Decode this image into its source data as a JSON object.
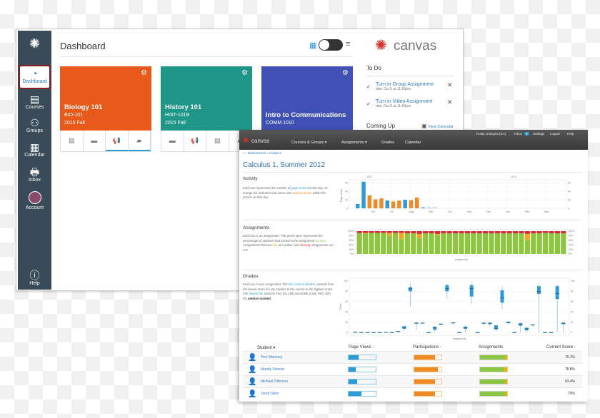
{
  "dashboard": {
    "title": "Dashboard",
    "nav": [
      {
        "label": "Dashboard",
        "icon": "dashboard-gauge-icon"
      },
      {
        "label": "Courses",
        "icon": "courses-book-icon"
      },
      {
        "label": "Groups",
        "icon": "groups-icon"
      },
      {
        "label": "Calendar",
        "icon": "calendar-icon"
      },
      {
        "label": "Inbox",
        "icon": "inbox-icon"
      },
      {
        "label": "Account",
        "icon": "avatar"
      },
      {
        "label": "Help",
        "icon": "help-icon"
      }
    ],
    "cards": [
      {
        "title": "Biology 101",
        "code": "BIO-101",
        "term": "2015 Fall",
        "color": "#E8591A"
      },
      {
        "title": "History 101",
        "code": "HIST-101B",
        "term": "2015 Fall",
        "color": "#1E9688"
      },
      {
        "title": "Intro to Communications",
        "code": "COMM 1010",
        "term": "",
        "color": "#3F51B5"
      }
    ],
    "brand": "canvas",
    "todo": {
      "title": "To Do",
      "items": [
        {
          "label": "Turn in Group Assignment",
          "due": "due: Oct 5 at 11:59pm"
        },
        {
          "label": "Turn in Video Assignment",
          "due": "due: Oct 8 at 11:59pm"
        }
      ]
    },
    "coming_up": "Coming Up",
    "view_calendar": "View Calendar"
  },
  "analytics": {
    "brand": "canvas",
    "user_links": {
      "user": "Rusty Lindquist (SA)",
      "inbox": "Inbox",
      "inbox_count": "3",
      "settings": "Settings",
      "logout": "Logout",
      "help": "Help"
    },
    "nav": [
      "Courses & Groups ▾",
      "Assignments ▾",
      "Grades",
      "Calendar"
    ],
    "breadcrumb": [
      "Math161S12",
      "Analytics"
    ],
    "title": "Calculus 1, Summer 2012",
    "activity": {
      "heading": "Activity",
      "desc": [
        "Each bar represents the number of ",
        "page views",
        " on that day. An orange bar indicates that some user ",
        "took an action",
        " within the course on that day."
      ]
    },
    "assignments": {
      "heading": "Assignments",
      "desc": [
        "Each bar is an assignment. The green layer represents the percentage of students that turned in the assignment ",
        "on time",
        ". Assignments that are ",
        "late",
        " are yellow, and ",
        "missing",
        " assignments are red."
      ]
    },
    "grades": {
      "heading": "Grades",
      "desc": [
        "Each bar is one assignment. The ",
        "thin vertical whisker",
        " extends from the lowest score for any student in the course to the highest score. The ",
        "thicker bar",
        " extends from the 25th percentile to the 75th, with the ",
        "median marked",
        "."
      ]
    },
    "table": {
      "headers": [
        "Student ▾",
        "Page Views ◦",
        "Participations ◦",
        "Assignments",
        "Current Score ◦"
      ],
      "rows": [
        {
          "name": "Tom Maroney",
          "page_views": 0.38,
          "participations": 0.75,
          "assignments": [
            0.92,
            0.08
          ],
          "score": "76.1%"
        },
        {
          "name": "Mandy Simson",
          "page_views": 0.25,
          "participations": 0.88,
          "assignments": [
            0.88,
            0.12
          ],
          "score": "78.8%"
        },
        {
          "name": "Michael Otterson",
          "page_views": 0.32,
          "participations": 0.75,
          "assignments": [
            0.92,
            0.08
          ],
          "score": "93.4%"
        },
        {
          "name": "Jared Stein",
          "page_views": 0.47,
          "participations": 0.75,
          "assignments": [
            0.93,
            0.07
          ],
          "score": "79%"
        }
      ]
    }
  },
  "chart_data": [
    {
      "type": "bar",
      "name": "activity",
      "ylabel": "Page Views",
      "yticks": [
        "0",
        "2k",
        "4k",
        "6k"
      ],
      "ylim": [
        0,
        6500
      ],
      "years": [
        "2012",
        "2013"
      ],
      "months": [
        "Jun",
        "Jul",
        "Aug",
        "Sep",
        "Oct",
        "Nov",
        "Dec",
        "Jan",
        "Feb",
        "Mar"
      ],
      "colors": {
        "views": "#2D9BD8",
        "action": "#F08A24"
      },
      "values": [
        {
          "v": 1000,
          "t": "views"
        },
        {
          "v": 6200,
          "t": "views"
        },
        {
          "v": 3000,
          "t": "action"
        },
        {
          "v": 2100,
          "t": "action"
        },
        {
          "v": 2300,
          "t": "action"
        },
        {
          "v": 1800,
          "t": "views"
        },
        {
          "v": 1600,
          "t": "action"
        },
        {
          "v": 1800,
          "t": "action"
        },
        {
          "v": 2000,
          "t": "views"
        },
        {
          "v": 1900,
          "t": "action"
        },
        {
          "v": 2500,
          "t": "action"
        },
        {
          "v": 200,
          "t": "views"
        },
        {
          "v": 100,
          "t": "views"
        },
        {
          "v": 100,
          "t": "views"
        }
      ]
    },
    {
      "type": "stacked-bar",
      "name": "assignments",
      "xlabel": "Assignments",
      "yticks": [
        "0%",
        "20%",
        "40%",
        "60%",
        "80%",
        "100%"
      ],
      "colors": {
        "on_time": "#8CC63F",
        "late": "#F5A623",
        "missing": "#D42E2E"
      },
      "series_keys": [
        "on_time",
        "late",
        "missing"
      ],
      "values": [
        [
          92,
          0,
          8
        ],
        [
          88,
          4,
          8
        ],
        [
          92,
          0,
          8
        ],
        [
          92,
          0,
          8
        ],
        [
          92,
          0,
          8
        ],
        [
          80,
          12,
          8
        ],
        [
          92,
          0,
          8
        ],
        [
          65,
          27,
          8
        ],
        [
          90,
          0,
          10
        ],
        [
          90,
          0,
          10
        ],
        [
          70,
          18,
          12
        ],
        [
          90,
          0,
          10
        ],
        [
          90,
          0,
          10
        ],
        [
          82,
          6,
          12
        ],
        [
          90,
          0,
          10
        ],
        [
          90,
          0,
          10
        ],
        [
          90,
          0,
          10
        ],
        [
          90,
          0,
          10
        ],
        [
          90,
          0,
          10
        ],
        [
          90,
          0,
          10
        ],
        [
          90,
          0,
          10
        ],
        [
          90,
          0,
          10
        ],
        [
          90,
          0,
          10
        ],
        [
          90,
          0,
          10
        ],
        [
          90,
          0,
          10
        ],
        [
          90,
          0,
          10
        ],
        [
          90,
          0,
          10
        ],
        [
          90,
          0,
          10
        ],
        [
          60,
          28,
          12
        ],
        [
          90,
          0,
          10
        ],
        [
          90,
          0,
          10
        ],
        [
          92,
          0,
          8
        ],
        [
          90,
          0,
          10
        ],
        [
          90,
          0,
          10
        ],
        [
          90,
          0,
          10
        ]
      ]
    },
    {
      "type": "boxplot",
      "name": "grades",
      "xlabel": "Assignments",
      "ylabel": "Points",
      "yticks": [
        0,
        20,
        40,
        60,
        80,
        100
      ],
      "color": "#2D9BD8",
      "values": [
        [
          0,
          0,
          1,
          1,
          1
        ],
        [
          0,
          0,
          0,
          0,
          0
        ],
        [
          0,
          0,
          0,
          0,
          0
        ],
        [
          0,
          0,
          0,
          0,
          0
        ],
        [
          0,
          0,
          0,
          0,
          0
        ],
        [
          0,
          0,
          0,
          1,
          1
        ],
        [
          0,
          0,
          0,
          0,
          0
        ],
        [
          2,
          2,
          2,
          2,
          3
        ],
        [
          3,
          7,
          10,
          12,
          14
        ],
        [
          50,
          80,
          85,
          88,
          95
        ],
        [
          5,
          17,
          18,
          19,
          20
        ],
        [
          17,
          18,
          18,
          19,
          19
        ],
        [
          0,
          0,
          0,
          0,
          0
        ],
        [
          0,
          5,
          9,
          11,
          12
        ],
        [
          14,
          15,
          16,
          17,
          18
        ],
        [
          65,
          80,
          85,
          92,
          94
        ],
        [
          15,
          18,
          19,
          19,
          19
        ],
        [
          0,
          0,
          0,
          0,
          0
        ],
        [
          0,
          7,
          9,
          11,
          14
        ],
        [
          55,
          70,
          85,
          92,
          97
        ],
        [
          0,
          0,
          0,
          0,
          0
        ],
        [
          13,
          17,
          18,
          19,
          19
        ],
        [
          12,
          16,
          18,
          19,
          19
        ],
        [
          3,
          6,
          8,
          14,
          14
        ],
        [
          45,
          58,
          67,
          82,
          90
        ],
        [
          15,
          18,
          20,
          21,
          21
        ],
        [
          0,
          0,
          0,
          0,
          0
        ],
        [
          0,
          13,
          16,
          18,
          19
        ],
        [
          0,
          4,
          7,
          9,
          10
        ],
        [
          11,
          14,
          15,
          15,
          16
        ],
        [
          0,
          75,
          80,
          90,
          96
        ],
        [
          0,
          0,
          0,
          0,
          0
        ],
        [
          0,
          0,
          0,
          0,
          0
        ],
        [
          0,
          65,
          76,
          90,
          94
        ],
        [
          0,
          16,
          18,
          19,
          20
        ]
      ]
    }
  ]
}
